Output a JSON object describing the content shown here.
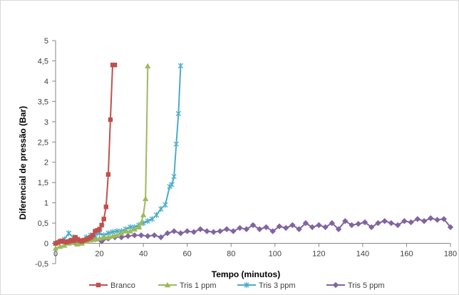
{
  "chart_data": {
    "type": "line",
    "title": "",
    "xlabel": "Tempo (minutos)",
    "ylabel": "Diferencial de pressão (Bar)",
    "xlim": [
      0,
      180
    ],
    "ylim": [
      -0.5,
      5
    ],
    "x_ticks": [
      0,
      20,
      40,
      60,
      80,
      100,
      120,
      140,
      160,
      180
    ],
    "y_ticks": [
      -0.5,
      0,
      0.5,
      1,
      1.5,
      2,
      2.5,
      3,
      3.5,
      4,
      4.5,
      5
    ],
    "x_tick_labels": [
      "0",
      "20",
      "40",
      "60",
      "80",
      "100",
      "120",
      "140",
      "160",
      "180"
    ],
    "y_tick_labels": [
      "-0,5",
      "0",
      "0,5",
      "1",
      "1,5",
      "2",
      "2,5",
      "3",
      "3,5",
      "4",
      "4,5",
      "5"
    ],
    "grid": false,
    "legend_position": "bottom",
    "series": [
      {
        "name": "Branco",
        "color": "#C0504D",
        "marker": "square",
        "x": [
          0,
          1,
          2,
          3,
          4,
          5,
          6,
          7,
          8,
          9,
          10,
          11,
          12,
          13,
          14,
          15,
          16,
          17,
          18,
          19,
          20,
          21,
          22,
          23,
          24,
          25,
          26,
          27
        ],
        "y": [
          0,
          0.02,
          0.05,
          0.06,
          0.04,
          0.03,
          0.05,
          0.08,
          0.06,
          0.15,
          0.1,
          0.07,
          0.05,
          0.08,
          0.1,
          0.12,
          0.15,
          0.2,
          0.3,
          0.32,
          0.35,
          0.45,
          0.6,
          0.9,
          1.7,
          3.05,
          4.4,
          4.4
        ]
      },
      {
        "name": "Tris 1 ppm",
        "color": "#9BBB59",
        "marker": "triangle",
        "x": [
          0,
          2,
          4,
          6,
          8,
          10,
          12,
          14,
          16,
          18,
          20,
          22,
          24,
          26,
          28,
          30,
          32,
          34,
          36,
          38,
          39,
          40,
          41,
          42
        ],
        "y": [
          -0.12,
          -0.08,
          -0.05,
          0.0,
          0.02,
          -0.02,
          0.0,
          0.05,
          0.08,
          0.1,
          0.12,
          0.15,
          0.15,
          0.18,
          0.2,
          0.25,
          0.3,
          0.3,
          0.35,
          0.4,
          0.5,
          0.7,
          1.1,
          4.37
        ]
      },
      {
        "name": "Tris 3 ppm",
        "color": "#4BACC6",
        "marker": "star",
        "x": [
          0,
          2,
          4,
          6,
          8,
          10,
          12,
          14,
          16,
          18,
          20,
          22,
          24,
          26,
          28,
          30,
          32,
          34,
          36,
          38,
          40,
          42,
          44,
          46,
          48,
          50,
          52,
          53,
          54,
          55,
          56,
          57
        ],
        "y": [
          0.0,
          0.05,
          0.1,
          0.25,
          0.15,
          0.1,
          0.05,
          0.15,
          0.2,
          0.2,
          0.25,
          0.2,
          0.25,
          0.28,
          0.3,
          0.3,
          0.35,
          0.4,
          0.4,
          0.45,
          0.5,
          0.55,
          0.6,
          0.7,
          0.85,
          0.95,
          1.4,
          1.45,
          1.65,
          2.45,
          3.2,
          4.38
        ]
      },
      {
        "name": "Tris 5 ppm",
        "color": "#8064A2",
        "marker": "diamond",
        "x": [
          0,
          3,
          6,
          9,
          12,
          15,
          18,
          21,
          24,
          27,
          30,
          33,
          36,
          39,
          42,
          45,
          48,
          51,
          54,
          57,
          60,
          63,
          66,
          69,
          72,
          75,
          78,
          81,
          84,
          87,
          90,
          93,
          96,
          99,
          102,
          105,
          108,
          111,
          114,
          117,
          120,
          123,
          126,
          129,
          132,
          135,
          138,
          141,
          144,
          147,
          150,
          153,
          156,
          159,
          162,
          165,
          168,
          171,
          174,
          177,
          180
        ],
        "y": [
          0.0,
          0.05,
          0.02,
          0.0,
          0.05,
          0.08,
          0.1,
          0.05,
          0.12,
          0.15,
          0.15,
          0.18,
          0.2,
          0.2,
          0.18,
          0.2,
          0.15,
          0.25,
          0.3,
          0.25,
          0.3,
          0.28,
          0.35,
          0.3,
          0.28,
          0.3,
          0.35,
          0.3,
          0.38,
          0.35,
          0.45,
          0.35,
          0.4,
          0.3,
          0.42,
          0.38,
          0.45,
          0.35,
          0.5,
          0.4,
          0.45,
          0.4,
          0.5,
          0.35,
          0.55,
          0.45,
          0.48,
          0.52,
          0.4,
          0.5,
          0.55,
          0.5,
          0.45,
          0.55,
          0.52,
          0.6,
          0.55,
          0.62,
          0.58,
          0.6,
          0.4
        ]
      }
    ]
  }
}
